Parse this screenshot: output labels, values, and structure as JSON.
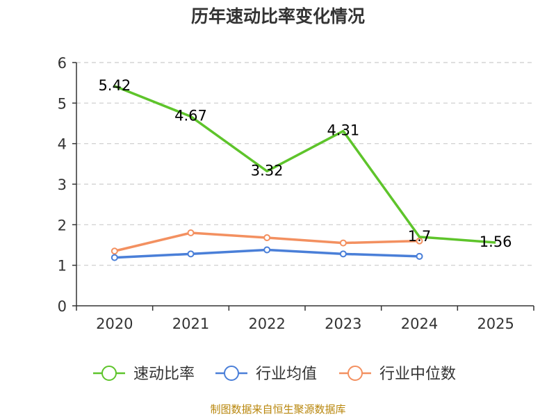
{
  "title": "历年速动比率变化情况",
  "source": "制图数据来自恒生聚源数据库",
  "colors": {
    "quick_ratio": "#5ec42b",
    "industry_mean": "#4a7fd8",
    "industry_median": "#f39060",
    "axis": "#333333",
    "grid": "#cccccc",
    "text": "#333333"
  },
  "chart_data": {
    "type": "line",
    "title": "历年速动比率变化情况",
    "xlabel": "",
    "ylabel": "",
    "ylim": [
      0,
      6
    ],
    "yticks": [
      "0",
      "1",
      "2",
      "3",
      "4",
      "5",
      "6"
    ],
    "categories": [
      "2020",
      "2021",
      "2022",
      "2023",
      "2024",
      "2025"
    ],
    "grid": true,
    "legend_position": "bottom",
    "series": [
      {
        "key": "quick_ratio",
        "name": "速动比率",
        "values": [
          5.42,
          4.67,
          3.32,
          4.31,
          1.7,
          1.56
        ],
        "labels": [
          "5.42",
          "4.67",
          "3.32",
          "4.31",
          "1.7",
          "1.56"
        ],
        "show_markers": false
      },
      {
        "key": "industry_mean",
        "name": "行业均值",
        "values": [
          1.19,
          1.28,
          1.38,
          1.28,
          1.22,
          null
        ],
        "labels": [],
        "show_markers": true
      },
      {
        "key": "industry_median",
        "name": "行业中位数",
        "values": [
          1.35,
          1.8,
          1.68,
          1.55,
          1.6,
          null
        ],
        "labels": [],
        "show_markers": true
      }
    ]
  }
}
